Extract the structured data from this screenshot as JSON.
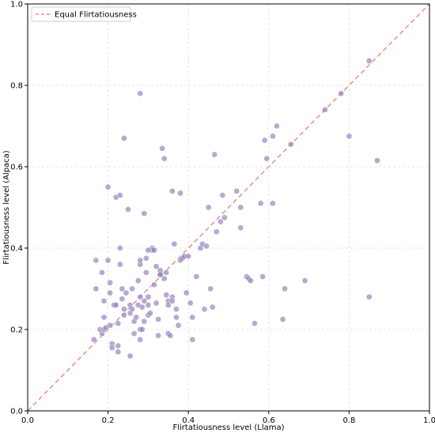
{
  "chart_data": {
    "type": "scatter",
    "xlabel": "Flirtatiousness level (Llama)",
    "ylabel": "Flirtatiousness level (Alpaca)",
    "xlim": [
      0,
      1
    ],
    "ylim": [
      0,
      1
    ],
    "xticks": [
      "0.0",
      "0.2",
      "0.4",
      "0.6",
      "0.8",
      "1.0"
    ],
    "yticks": [
      "0.0",
      "0.2",
      "0.4",
      "0.6",
      "0.8",
      "1.0"
    ],
    "grid": true,
    "legend": {
      "placement": "top-left",
      "entries": [
        "Equal Flirtatiousness"
      ]
    },
    "colors": {
      "points": "#8E7CB8",
      "diagonal": "#F07070",
      "grid": "#DDDDDD"
    },
    "reference_line": {
      "name": "Equal Flirtatiousness",
      "style": "dashed",
      "points": [
        [
          0,
          0
        ],
        [
          1,
          1
        ]
      ]
    },
    "points": [
      [
        0.165,
        0.175
      ],
      [
        0.17,
        0.3
      ],
      [
        0.17,
        0.37
      ],
      [
        0.18,
        0.2
      ],
      [
        0.185,
        0.34
      ],
      [
        0.19,
        0.27
      ],
      [
        0.19,
        0.23
      ],
      [
        0.185,
        0.19
      ],
      [
        0.19,
        0.2
      ],
      [
        0.195,
        0.205
      ],
      [
        0.2,
        0.37
      ],
      [
        0.2,
        0.55
      ],
      [
        0.205,
        0.315
      ],
      [
        0.205,
        0.29
      ],
      [
        0.205,
        0.21
      ],
      [
        0.21,
        0.165
      ],
      [
        0.21,
        0.155
      ],
      [
        0.215,
        0.26
      ],
      [
        0.22,
        0.26
      ],
      [
        0.22,
        0.525
      ],
      [
        0.225,
        0.16
      ],
      [
        0.225,
        0.145
      ],
      [
        0.225,
        0.215
      ],
      [
        0.23,
        0.53
      ],
      [
        0.23,
        0.4
      ],
      [
        0.23,
        0.36
      ],
      [
        0.235,
        0.3
      ],
      [
        0.235,
        0.275
      ],
      [
        0.24,
        0.25
      ],
      [
        0.24,
        0.235
      ],
      [
        0.24,
        0.67
      ],
      [
        0.245,
        0.29
      ],
      [
        0.25,
        0.495
      ],
      [
        0.255,
        0.26
      ],
      [
        0.255,
        0.24
      ],
      [
        0.255,
        0.135
      ],
      [
        0.26,
        0.3
      ],
      [
        0.26,
        0.25
      ],
      [
        0.265,
        0.22
      ],
      [
        0.265,
        0.19
      ],
      [
        0.27,
        0.23
      ],
      [
        0.275,
        0.26
      ],
      [
        0.275,
        0.32
      ],
      [
        0.28,
        0.36
      ],
      [
        0.28,
        0.37
      ],
      [
        0.28,
        0.28
      ],
      [
        0.28,
        0.2
      ],
      [
        0.28,
        0.175
      ],
      [
        0.28,
        0.78
      ],
      [
        0.285,
        0.255
      ],
      [
        0.29,
        0.485
      ],
      [
        0.29,
        0.27
      ],
      [
        0.29,
        0.22
      ],
      [
        0.295,
        0.34
      ],
      [
        0.295,
        0.375
      ],
      [
        0.3,
        0.28
      ],
      [
        0.3,
        0.26
      ],
      [
        0.3,
        0.235
      ],
      [
        0.305,
        0.24
      ],
      [
        0.31,
        0.4
      ],
      [
        0.31,
        0.395
      ],
      [
        0.315,
        0.395
      ],
      [
        0.315,
        0.31
      ],
      [
        0.32,
        0.355
      ],
      [
        0.32,
        0.265
      ],
      [
        0.325,
        0.225
      ],
      [
        0.325,
        0.185
      ],
      [
        0.33,
        0.335
      ],
      [
        0.33,
        0.345
      ],
      [
        0.335,
        0.645
      ],
      [
        0.34,
        0.62
      ],
      [
        0.34,
        0.325
      ],
      [
        0.345,
        0.34
      ],
      [
        0.345,
        0.285
      ],
      [
        0.35,
        0.27
      ],
      [
        0.35,
        0.26
      ],
      [
        0.35,
        0.19
      ],
      [
        0.355,
        0.185
      ],
      [
        0.36,
        0.54
      ],
      [
        0.36,
        0.28
      ],
      [
        0.36,
        0.27
      ],
      [
        0.365,
        0.41
      ],
      [
        0.37,
        0.25
      ],
      [
        0.37,
        0.23
      ],
      [
        0.375,
        0.21
      ],
      [
        0.38,
        0.535
      ],
      [
        0.38,
        0.37
      ],
      [
        0.385,
        0.375
      ],
      [
        0.39,
        0.38
      ],
      [
        0.395,
        0.29
      ],
      [
        0.4,
        0.38
      ],
      [
        0.405,
        0.265
      ],
      [
        0.41,
        0.23
      ],
      [
        0.41,
        0.175
      ],
      [
        0.42,
        0.33
      ],
      [
        0.43,
        0.4
      ],
      [
        0.435,
        0.41
      ],
      [
        0.44,
        0.25
      ],
      [
        0.445,
        0.405
      ],
      [
        0.45,
        0.5
      ],
      [
        0.455,
        0.3
      ],
      [
        0.46,
        0.255
      ],
      [
        0.465,
        0.63
      ],
      [
        0.47,
        0.44
      ],
      [
        0.48,
        0.465
      ],
      [
        0.485,
        0.53
      ],
      [
        0.49,
        0.475
      ],
      [
        0.52,
        0.54
      ],
      [
        0.53,
        0.5
      ],
      [
        0.53,
        0.45
      ],
      [
        0.545,
        0.33
      ],
      [
        0.55,
        0.325
      ],
      [
        0.555,
        0.32
      ],
      [
        0.565,
        0.215
      ],
      [
        0.58,
        0.51
      ],
      [
        0.585,
        0.33
      ],
      [
        0.59,
        0.665
      ],
      [
        0.595,
        0.62
      ],
      [
        0.61,
        0.675
      ],
      [
        0.61,
        0.51
      ],
      [
        0.62,
        0.7
      ],
      [
        0.635,
        0.225
      ],
      [
        0.64,
        0.3
      ],
      [
        0.655,
        0.655
      ],
      [
        0.69,
        0.32
      ],
      [
        0.74,
        0.74
      ],
      [
        0.78,
        0.78
      ],
      [
        0.8,
        0.675
      ],
      [
        0.85,
        0.86
      ],
      [
        0.85,
        0.28
      ],
      [
        0.87,
        0.615
      ],
      [
        0.33,
        0.335
      ],
      [
        0.3,
        0.395
      ],
      [
        0.285,
        0.2
      ]
    ]
  }
}
